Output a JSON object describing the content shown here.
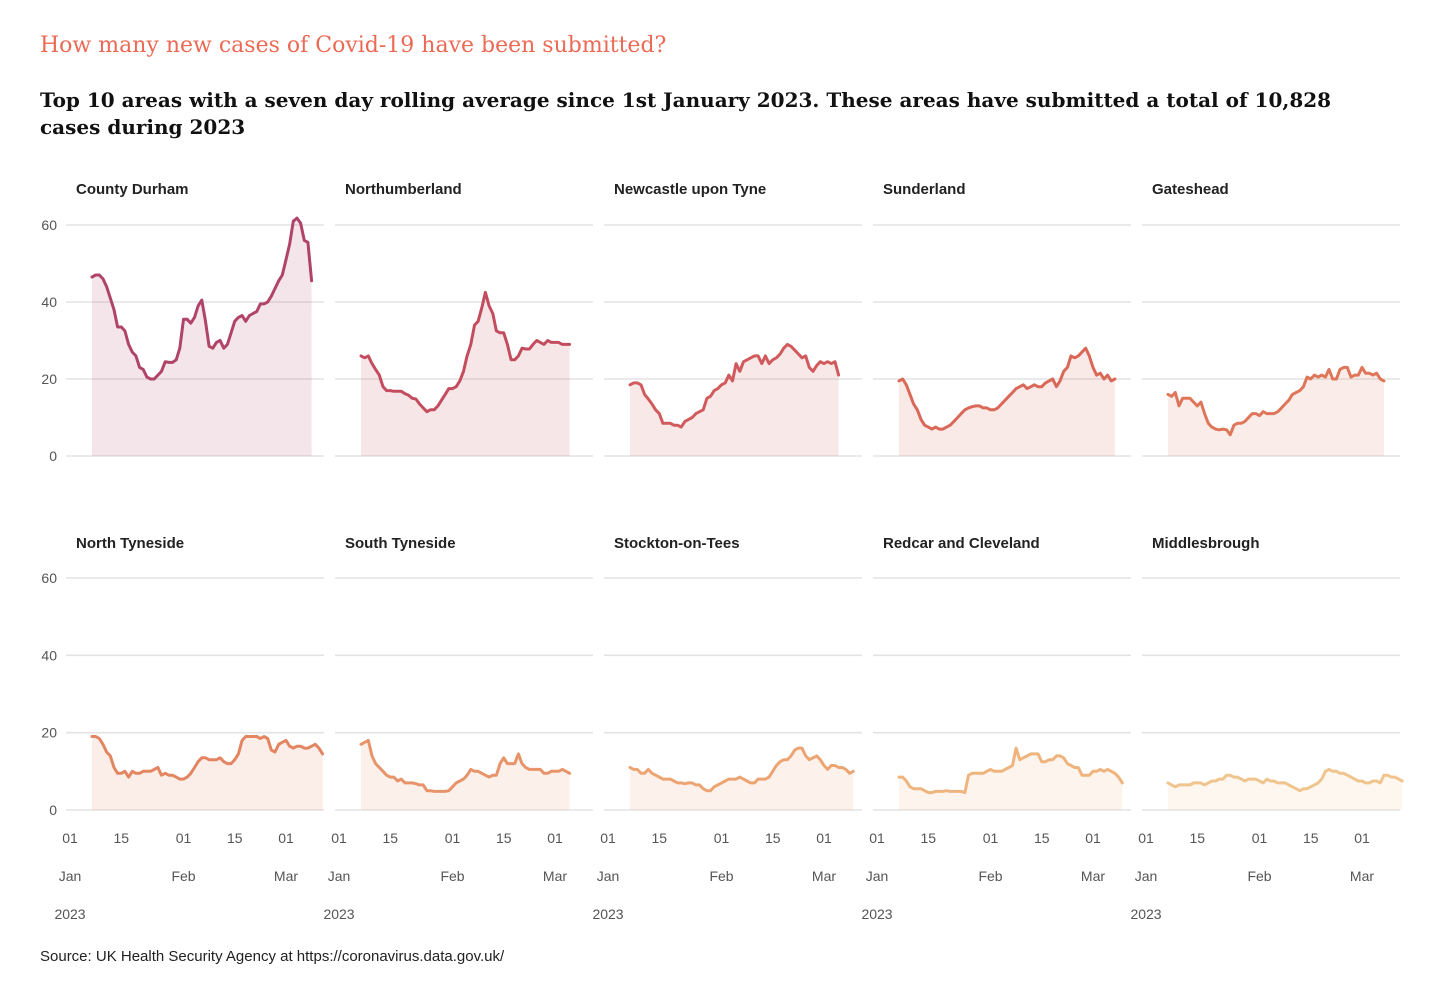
{
  "kicker": "How many new cases of Covid-19  have been submitted?",
  "title": "Top 10 areas with a seven day rolling average since 1st January 2023. These areas have submitted a total of 10,828 cases during 2023",
  "source": "Source: UK Health Security Agency at https://coronavirus.data.gov.uk/",
  "chart_data": {
    "type": "area",
    "x_start": "2023-01-07",
    "x_step_days": 1,
    "ylim": [
      0,
      65
    ],
    "y_ticks": [
      "0",
      "20",
      "40",
      "60"
    ],
    "x_ticks": [
      {
        "day": "01",
        "month": "Jan",
        "year": "2023"
      },
      {
        "day": "15",
        "month": "",
        "year": ""
      },
      {
        "day": "01",
        "month": "Feb",
        "year": ""
      },
      {
        "day": "15",
        "month": "",
        "year": ""
      },
      {
        "day": "01",
        "month": "Mar",
        "year": ""
      }
    ],
    "grid": true,
    "series": [
      {
        "name": "County Durham",
        "color": "#b04467",
        "values": [
          46.5,
          47,
          47,
          46,
          44,
          41,
          38,
          33.5,
          33.5,
          32.5,
          29,
          27,
          26,
          23,
          22.5,
          20.5,
          20,
          20,
          21,
          22,
          24.5,
          24.3,
          24.3,
          25,
          28,
          35.5,
          35.5,
          34.5,
          36,
          39,
          40.5,
          35,
          28.5,
          28,
          29.5,
          30,
          28,
          29,
          32,
          35,
          36,
          36.5,
          35,
          36.5,
          37,
          37.5,
          39.5,
          39.5,
          40,
          41.5,
          43.5,
          45.5,
          47,
          51,
          55,
          61,
          61.8,
          60.5,
          56,
          55.5,
          45.5
        ]
      },
      {
        "name": "Northumberland",
        "color": "#c34d5f",
        "values": [
          26,
          25.5,
          26,
          24,
          22.5,
          21,
          18,
          17,
          17,
          16.8,
          16.8,
          16.8,
          16.2,
          15.8,
          15,
          14.8,
          13.5,
          12.5,
          11.5,
          12,
          12,
          13,
          14.5,
          16,
          17.5,
          17.5,
          18,
          19.5,
          22,
          26,
          29,
          34,
          35,
          38.5,
          42.5,
          39,
          37,
          32.5,
          32,
          32,
          29,
          25,
          25,
          26,
          28,
          27.8,
          27.8,
          29,
          30,
          29.5,
          29,
          30,
          29.5,
          29.5,
          29.5,
          29,
          29,
          29
        ]
      },
      {
        "name": "Newcastle upon Tyne",
        "color": "#d05a5c",
        "values": [
          18.5,
          19,
          19,
          18.5,
          16,
          14.8,
          13.5,
          12,
          11,
          8.5,
          8.5,
          8.5,
          8,
          8,
          7.5,
          9,
          9.5,
          10,
          11,
          11.5,
          12,
          15,
          15.5,
          17,
          17.5,
          18.5,
          19,
          21,
          19.5,
          24,
          22,
          24.5,
          25,
          25.5,
          26,
          26,
          24,
          26,
          24,
          25,
          25.5,
          26.5,
          28,
          29,
          28.5,
          27.5,
          26.5,
          25.5,
          26,
          23,
          22,
          23.5,
          24.5,
          24,
          24.5,
          24,
          24.5,
          21
        ]
      },
      {
        "name": "Sunderland",
        "color": "#da6858",
        "values": [
          19.5,
          20,
          18.5,
          16,
          13.5,
          12,
          9.5,
          8,
          7.5,
          7,
          7.5,
          7,
          7,
          7.5,
          8,
          9,
          10,
          11,
          12,
          12.5,
          12.8,
          13,
          13,
          12.5,
          12.5,
          12,
          12,
          12.5,
          13.5,
          14.5,
          15.5,
          16.5,
          17.5,
          18,
          18.5,
          17.5,
          18,
          18.5,
          18,
          18,
          19,
          19.5,
          20,
          18,
          19.5,
          22,
          23,
          26,
          25.5,
          26,
          27,
          28,
          26,
          23,
          21,
          21.5,
          20,
          21,
          19.5,
          20
        ]
      },
      {
        "name": "Gateshead",
        "color": "#df7659",
        "values": [
          16,
          15.5,
          16.5,
          13,
          15,
          15,
          15,
          14,
          13,
          14,
          11,
          8.5,
          7.5,
          7,
          6.8,
          7,
          6.8,
          5.5,
          8,
          8.5,
          8.5,
          9,
          10,
          11,
          11,
          10.5,
          11.5,
          11,
          11,
          11,
          11.5,
          12.5,
          13.5,
          14.5,
          16,
          16.5,
          17,
          18,
          20.5,
          20,
          21,
          20.5,
          21,
          20.5,
          22.5,
          20,
          20,
          22.5,
          23,
          23,
          20.5,
          21,
          21,
          23,
          21.5,
          21.5,
          21,
          21.5,
          20,
          19.5
        ]
      },
      {
        "name": "North Tyneside",
        "color": "#e38561",
        "values": [
          19,
          19,
          18.5,
          17,
          15,
          14,
          11,
          9.5,
          9.5,
          10,
          8.5,
          10,
          9.5,
          9.5,
          10,
          10,
          10,
          10.5,
          11,
          9,
          9.5,
          9,
          9,
          8.5,
          8,
          8,
          8.5,
          9.5,
          11,
          12.5,
          13.5,
          13.5,
          13,
          13,
          13,
          13.5,
          12.5,
          12,
          12,
          13,
          14.5,
          18,
          19,
          19,
          19,
          19,
          18.5,
          19,
          18.5,
          15.5,
          15,
          17,
          17.5,
          18,
          16.5,
          16,
          16.5,
          16.5,
          16,
          16,
          16.5,
          17,
          16,
          14.5
        ]
      },
      {
        "name": "South Tyneside",
        "color": "#e8946a",
        "values": [
          17,
          17.5,
          18,
          14,
          12,
          11,
          10,
          9,
          8.5,
          8.5,
          7.5,
          8,
          7,
          7,
          7,
          6.8,
          6.5,
          6.5,
          5,
          5,
          4.8,
          4.8,
          4.8,
          4.8,
          5,
          6,
          7,
          7.5,
          8,
          9,
          10.5,
          10,
          10,
          9.5,
          9,
          8.5,
          9,
          9,
          12,
          13.5,
          12,
          12,
          12,
          14.5,
          12,
          11,
          10.5,
          10.5,
          10.5,
          10.5,
          9.5,
          9.5,
          10,
          10,
          10,
          10.5,
          10,
          9.5
        ]
      },
      {
        "name": "Stockton-on-Tees",
        "color": "#eca472",
        "values": [
          11,
          10.5,
          10.5,
          9.5,
          9.5,
          10.5,
          9.5,
          9,
          8.5,
          8,
          8,
          8,
          7.5,
          7,
          7,
          6.8,
          7,
          7,
          6.5,
          6.5,
          5.5,
          5,
          5,
          6,
          6.5,
          7,
          7.5,
          8,
          8,
          8,
          8.5,
          8,
          7.5,
          7,
          7,
          8,
          8,
          8,
          8.5,
          10,
          11.5,
          12.5,
          13,
          13,
          14,
          15.5,
          16,
          16,
          14,
          13,
          13.5,
          14,
          13,
          11.5,
          10.5,
          11.5,
          11.5,
          11,
          11,
          10.5,
          9.5,
          10
        ]
      },
      {
        "name": "Redcar and Cleveland",
        "color": "#efb47d",
        "values": [
          8.5,
          8.5,
          7.5,
          6,
          5.5,
          5.5,
          5.5,
          5,
          4.5,
          4.5,
          4.8,
          4.8,
          4.8,
          5,
          4.8,
          4.8,
          4.8,
          4.8,
          4.5,
          9,
          9.5,
          9.5,
          9.5,
          9.5,
          10,
          10.5,
          10,
          10,
          10,
          10.5,
          11,
          11.5,
          16,
          13,
          13.5,
          14,
          14.5,
          14.5,
          14.5,
          12.5,
          12.5,
          13,
          13,
          14,
          14,
          13.5,
          12,
          11.5,
          11,
          11,
          9,
          9,
          9,
          10,
          10,
          10.5,
          10,
          10.5,
          10,
          9.5,
          8.5,
          7
        ]
      },
      {
        "name": "Middlesbrough",
        "color": "#f0c48d",
        "values": [
          7,
          6.5,
          6,
          6.5,
          6.5,
          6.5,
          6.5,
          7,
          7,
          7,
          6.5,
          7,
          7.5,
          7.5,
          8,
          8,
          9,
          9,
          8.5,
          8.5,
          8,
          7.5,
          8,
          8,
          8,
          7.5,
          7,
          8,
          7.5,
          7.5,
          7,
          7,
          7,
          6.5,
          6,
          5.5,
          5,
          5.5,
          5.5,
          6,
          6.5,
          7,
          8,
          10,
          10.5,
          10,
          10,
          9.5,
          9.5,
          9,
          8.5,
          8,
          7.5,
          7.5,
          7,
          7,
          7.5,
          7.5,
          7,
          9,
          9,
          8.5,
          8.5,
          8,
          7.5
        ]
      }
    ]
  }
}
